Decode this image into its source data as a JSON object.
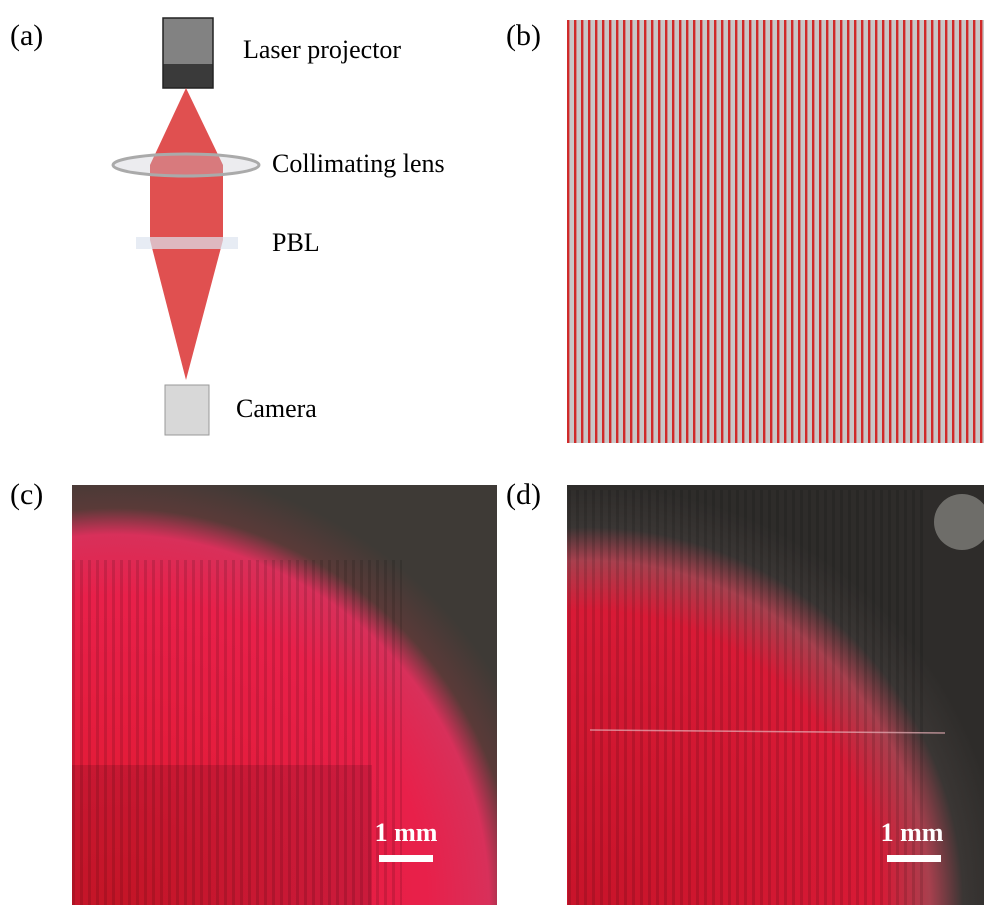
{
  "panel_a": {
    "label": "(a)",
    "laser": "Laser projector",
    "lens": "Collimating lens",
    "pbl": "PBL",
    "camera": "Camera"
  },
  "panel_b": {
    "label": "(b)"
  },
  "panel_c": {
    "label": "(c)",
    "scale": "1 mm"
  },
  "panel_d": {
    "label": "(d)",
    "scale": "1 mm"
  }
}
